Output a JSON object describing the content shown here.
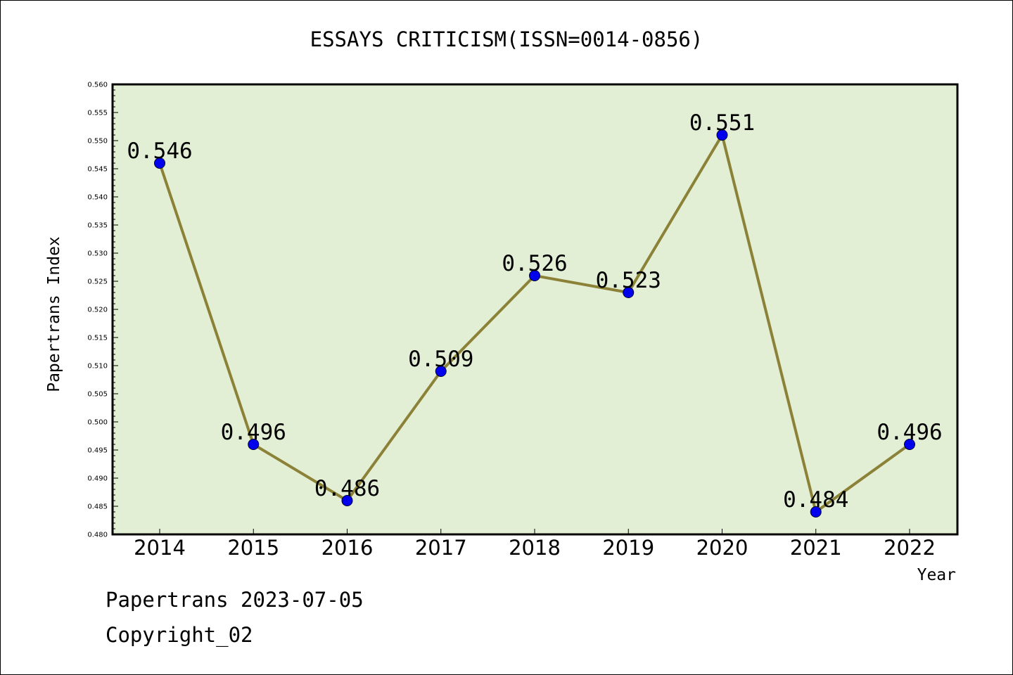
{
  "chart_data": {
    "type": "line",
    "title": "ESSAYS CRITICISM(ISSN=0014-0856)",
    "xlabel": "Year",
    "ylabel": "Papertrans Index",
    "categories": [
      "2014",
      "2015",
      "2016",
      "2017",
      "2018",
      "2019",
      "2020",
      "2021",
      "2022"
    ],
    "series": [
      {
        "values": [
          0.546,
          0.496,
          0.486,
          0.509,
          0.526,
          0.523,
          0.551,
          0.484,
          0.496
        ],
        "labels": [
          "0.546",
          "0.496",
          "0.486",
          "0.509",
          "0.526",
          "0.523",
          "0.551",
          "0.484",
          "0.496"
        ]
      }
    ],
    "ylim": [
      0.48,
      0.56
    ],
    "yticks": [
      "0.480",
      "0.485",
      "0.490",
      "0.495",
      "0.500",
      "0.505",
      "0.510",
      "0.515",
      "0.520",
      "0.525",
      "0.530",
      "0.535",
      "0.540",
      "0.545",
      "0.550",
      "0.555",
      "0.560"
    ],
    "grid": false,
    "legend": "none",
    "colors": {
      "plot_background": "#e2efd5",
      "line": "#8b8237",
      "marker": "#0000ee"
    }
  },
  "footer": {
    "line1": "Papertrans 2023-07-05",
    "line2": "Copyright_02"
  }
}
